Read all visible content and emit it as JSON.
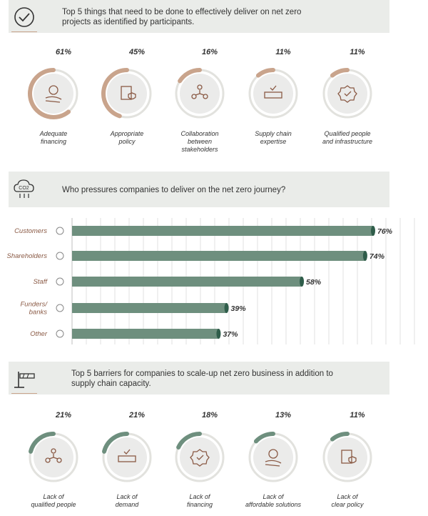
{
  "section1": {
    "icon": "checkmark-circle-icon",
    "title_line1": "Top 5 things that need to be done to effectively deliver on net zero",
    "title_line2": "projects as identified by participants."
  },
  "section2": {
    "icon": "co2-cloud-icon",
    "title": "Who pressures companies to deliver on the net zero journey?"
  },
  "section3": {
    "icon": "barrier-gate-icon",
    "title_line1": "Top 5 barriers for companies to scale-up net zero business in addition to",
    "title_line2": "supply chain capacity."
  },
  "colors": {
    "ring_track": "#e2e2de",
    "ring_fill_brown": "#c9a48c",
    "ring_fill_green": "#6e8f7e",
    "bar": "#6e8f7e",
    "label_brown": "#8a5a45",
    "banner_bg": "#eaece9"
  },
  "chart_data": [
    {
      "type": "donut",
      "title": "Top 5 things that need to be done to effectively deliver on net zero projects as identified by participants.",
      "categories": [
        [
          "Adequate",
          "financing"
        ],
        [
          "Appropriate",
          "policy"
        ],
        [
          "Collaboration",
          "between",
          "stakeholders"
        ],
        [
          "Supply chain",
          "expertise"
        ],
        [
          "Qualified people",
          "and infrastructure"
        ]
      ],
      "values": [
        61,
        45,
        16,
        11,
        11
      ],
      "value_labels": [
        "61%",
        "45%",
        "16%",
        "11%",
        "11%"
      ],
      "icons": [
        "money-hand-icon",
        "policy-shield-icon",
        "people-network-icon",
        "supply-chain-icon",
        "badge-check-icon"
      ]
    },
    {
      "type": "bar",
      "orientation": "horizontal",
      "title": "Who pressures companies to deliver on the net zero journey?",
      "categories": [
        [
          "Customers"
        ],
        [
          "Shareholders"
        ],
        [
          "Staff"
        ],
        [
          "Funders/",
          "banks"
        ],
        [
          "Other"
        ]
      ],
      "values": [
        76,
        74,
        58,
        39,
        37
      ],
      "value_labels": [
        "76%",
        "74%",
        "58%",
        "39%",
        "37%"
      ],
      "icons": [
        "customers-icon",
        "shareholders-icon",
        "staff-icon",
        "bank-icon",
        "more-dots-icon"
      ],
      "xlim": [
        0,
        76
      ],
      "grid": true
    },
    {
      "type": "donut",
      "title": "Top 5 barriers for companies to scale-up net zero business in addition to supply chain capacity.",
      "categories": [
        [
          "Lack of",
          "qualified people"
        ],
        [
          "Lack of",
          "demand"
        ],
        [
          "Lack of",
          "financing"
        ],
        [
          "Lack of",
          "affordable solutions"
        ],
        [
          "Lack of",
          "clear policy"
        ]
      ],
      "values": [
        21,
        21,
        18,
        13,
        11
      ],
      "value_labels": [
        "21%",
        "21%",
        "18%",
        "13%",
        "11%"
      ],
      "icons": [
        "person-x-icon",
        "demand-hand-icon",
        "money-shield-icon",
        "bulb-x-icon",
        "policy-doc-icon"
      ]
    }
  ]
}
